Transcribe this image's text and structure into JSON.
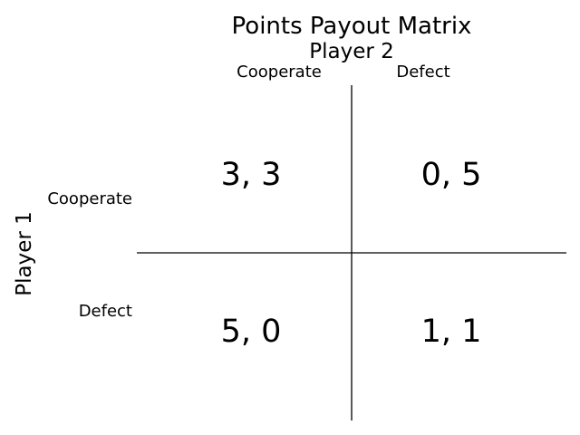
{
  "title": "Points Payout Matrix",
  "column_player": "Player 2",
  "row_player": "Player 1",
  "columns": [
    "Cooperate",
    "Defect"
  ],
  "rows": [
    "Cooperate",
    "Defect"
  ],
  "cells": [
    [
      "3, 3",
      "0, 5"
    ],
    [
      "5, 0",
      "1, 1"
    ]
  ],
  "colors": {
    "text": "#000000",
    "lines": "#000000",
    "background": "#ffffff"
  }
}
